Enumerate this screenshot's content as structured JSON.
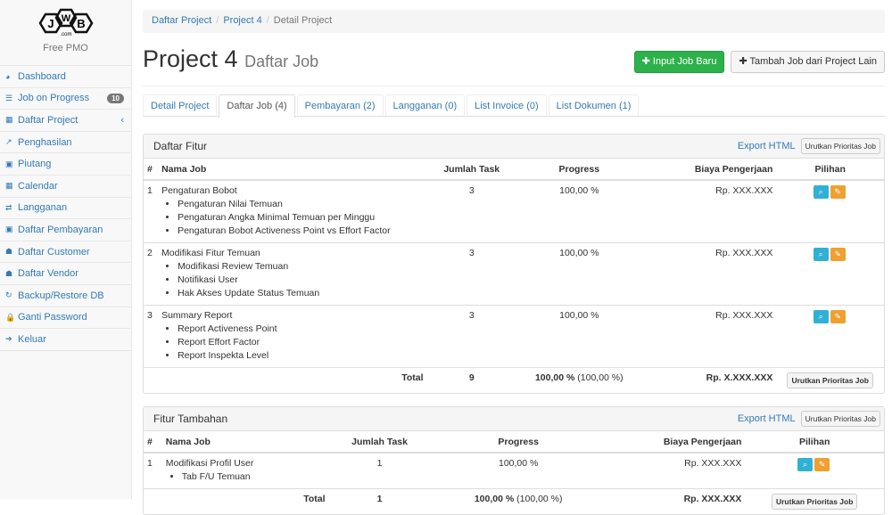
{
  "sidebar": {
    "logo_text": "JWB .com",
    "brand": "Free PMO",
    "items": [
      {
        "label": "Dashboard",
        "icon": "dashboard-icon"
      },
      {
        "label": "Job on Progress",
        "icon": "tasks-icon",
        "badge": "10"
      },
      {
        "label": "Daftar Project",
        "icon": "table-icon"
      },
      {
        "label": "Penghasilan",
        "icon": "line-chart-icon"
      },
      {
        "label": "Piutang",
        "icon": "money-icon"
      },
      {
        "label": "Calendar",
        "icon": "calendar-icon"
      },
      {
        "label": "Langganan",
        "icon": "retweet-icon"
      },
      {
        "label": "Daftar Pembayaran",
        "icon": "money-icon"
      },
      {
        "label": "Daftar Customer",
        "icon": "users-icon"
      },
      {
        "label": "Daftar Vendor",
        "icon": "users-icon"
      },
      {
        "label": "Backup/Restore DB",
        "icon": "refresh-icon"
      },
      {
        "label": "Ganti Password",
        "icon": "lock-icon"
      },
      {
        "label": "Keluar",
        "icon": "sign-out-icon"
      }
    ]
  },
  "breadcrumb": [
    "Daftar Project",
    "Project 4",
    "Detail Project"
  ],
  "header": {
    "title": "Project 4",
    "subtitle": "Daftar Job",
    "btn_input": "Input Job Baru",
    "btn_tambah": "Tambah Job dari Project Lain"
  },
  "tabs": [
    "Detail Project",
    "Daftar Job (4)",
    "Pembayaran (2)",
    "Langganan (0)",
    "List Invoice (0)",
    "List Dokumen (1)"
  ],
  "fitur": {
    "title": "Daftar Fitur",
    "export": "Export HTML",
    "sort": "Urutkan Prioritas Job",
    "columns": [
      "#",
      "Nama Job",
      "Jumlah Task",
      "Progress",
      "Biaya Pengerjaan",
      "Pilihan"
    ],
    "rows": [
      {
        "no": "1",
        "name": "Pengaturan Bobot",
        "subs": [
          "Pengaturan Nilai Temuan",
          "Pengaturan Angka Minimal Temuan per Minggu",
          "Pengaturan Bobot Activeness Point vs Effort Factor"
        ],
        "tasks": "3",
        "progress": "100,00 %",
        "biaya": "Rp. XXX.XXX"
      },
      {
        "no": "2",
        "name": "Modifikasi Fitur Temuan",
        "subs": [
          "Modifikasi Review Temuan",
          "Notifikasi User",
          "Hak Akses Update Status Temuan"
        ],
        "tasks": "3",
        "progress": "100,00 %",
        "biaya": "Rp. XXX.XXX"
      },
      {
        "no": "3",
        "name": "Summary Report",
        "subs": [
          "Report Activeness Point",
          "Report Effort Factor",
          "Report Inspekta Level"
        ],
        "tasks": "3",
        "progress": "100,00 %",
        "biaya": "Rp. XXX.XXX"
      }
    ],
    "total": {
      "label": "Total",
      "tasks": "9",
      "progress": "100,00 %",
      "progress_extra": "(100,00 %)",
      "biaya": "Rp. X.XXX.XXX"
    }
  },
  "tambahan": {
    "title": "Fitur Tambahan",
    "export": "Export HTML",
    "sort": "Urutkan Prioritas Job",
    "columns": [
      "#",
      "Nama Job",
      "Jumlah Task",
      "Progress",
      "Biaya Pengerjaan",
      "Pilihan"
    ],
    "rows": [
      {
        "no": "1",
        "name": "Modifikasi Profil User",
        "subs": [
          "Tab F/U Temuan"
        ],
        "tasks": "1",
        "progress": "100,00 %",
        "biaya": "Rp. XXX.XXX"
      }
    ],
    "total": {
      "label": "Total",
      "tasks": "1",
      "progress": "100,00 %",
      "progress_extra": "(100,00 %)",
      "biaya": "Rp. XXX.XXX"
    }
  },
  "colors": {
    "success": "#2db14b",
    "info": "#31b0d5",
    "warning": "#f0a030",
    "link": "#337ab7"
  }
}
